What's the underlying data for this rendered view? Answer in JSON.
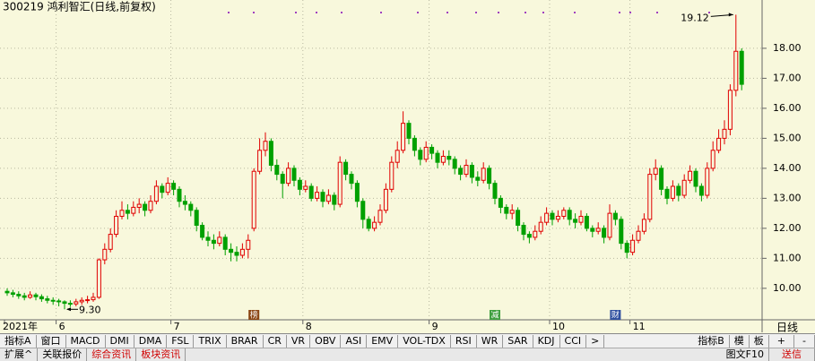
{
  "chart_data": {
    "type": "candlestick",
    "title": "300219 鸿利智汇(日线,前复权)",
    "categories": [
      "2021年",
      null,
      null,
      null,
      null,
      null,
      null,
      null,
      null,
      "6",
      null,
      null,
      null,
      null,
      null,
      null,
      null,
      null,
      null,
      null,
      null,
      null,
      null,
      null,
      null,
      null,
      null,
      null,
      null,
      "7",
      null,
      null,
      null,
      null,
      null,
      null,
      null,
      null,
      null,
      null,
      null,
      null,
      null,
      null,
      null,
      null,
      null,
      null,
      null,
      null,
      null,
      null,
      "8",
      null,
      null,
      null,
      null,
      null,
      null,
      null,
      null,
      null,
      null,
      null,
      null,
      null,
      null,
      null,
      null,
      null,
      null,
      null,
      null,
      null,
      "9",
      null,
      null,
      null,
      null,
      null,
      null,
      null,
      null,
      null,
      null,
      null,
      null,
      null,
      null,
      null,
      null,
      null,
      null,
      null,
      null,
      "10",
      null,
      null,
      null,
      null,
      null,
      null,
      null,
      null,
      null,
      null,
      null,
      null,
      null,
      "11",
      null,
      null,
      null,
      null,
      null,
      null,
      null,
      null,
      null,
      null,
      null,
      null,
      null,
      null,
      null,
      null,
      null,
      null,
      null
    ],
    "open": [
      9.9,
      9.85,
      9.8,
      9.75,
      9.7,
      9.78,
      9.72,
      9.65,
      9.6,
      9.58,
      9.55,
      9.5,
      9.48,
      9.55,
      9.6,
      9.62,
      9.7,
      10.95,
      11.3,
      11.8,
      12.4,
      12.6,
      12.5,
      12.7,
      12.8,
      12.6,
      12.9,
      13.4,
      13.2,
      13.5,
      13.3,
      12.9,
      12.8,
      12.6,
      12.1,
      11.7,
      11.6,
      11.5,
      11.7,
      11.3,
      11.2,
      11.1,
      11.3,
      12.0,
      13.9,
      14.6,
      14.9,
      14.1,
      13.8,
      13.5,
      14.0,
      13.6,
      13.3,
      13.4,
      13.0,
      13.2,
      12.9,
      13.1,
      12.8,
      14.2,
      13.8,
      13.5,
      12.9,
      12.3,
      12.0,
      12.2,
      12.6,
      13.3,
      14.2,
      14.6,
      15.5,
      15.0,
      14.6,
      14.3,
      14.7,
      14.5,
      14.2,
      14.4,
      14.3,
      14.0,
      13.8,
      14.1,
      13.7,
      13.6,
      14.0,
      13.5,
      13.0,
      12.7,
      12.5,
      12.6,
      12.1,
      11.8,
      11.7,
      11.9,
      12.2,
      12.5,
      12.3,
      12.4,
      12.6,
      12.3,
      12.2,
      12.4,
      12.0,
      11.9,
      12.0,
      11.7,
      12.5,
      12.3,
      11.5,
      11.2,
      11.6,
      11.9,
      12.3,
      13.8,
      14.0,
      13.3,
      13.0,
      13.4,
      13.1,
      13.6,
      13.9,
      13.4,
      13.1,
      14.0,
      14.6,
      15.0,
      15.3,
      16.6,
      17.9
    ],
    "close": [
      9.85,
      9.8,
      9.75,
      9.7,
      9.78,
      9.72,
      9.65,
      9.6,
      9.58,
      9.55,
      9.5,
      9.48,
      9.55,
      9.6,
      9.62,
      9.7,
      10.95,
      11.3,
      11.8,
      12.4,
      12.6,
      12.5,
      12.7,
      12.8,
      12.6,
      12.9,
      13.4,
      13.2,
      13.5,
      13.3,
      12.9,
      12.8,
      12.6,
      12.1,
      11.7,
      11.6,
      11.5,
      11.7,
      11.3,
      11.2,
      11.1,
      11.3,
      11.6,
      13.9,
      14.6,
      14.9,
      14.1,
      13.8,
      13.5,
      14.0,
      13.6,
      13.3,
      13.4,
      13.0,
      13.2,
      12.9,
      13.1,
      12.8,
      14.2,
      13.8,
      13.5,
      12.9,
      12.3,
      12.0,
      12.2,
      12.6,
      13.3,
      14.2,
      14.6,
      15.5,
      15.0,
      14.6,
      14.3,
      14.7,
      14.5,
      14.2,
      14.4,
      14.3,
      14.0,
      13.8,
      14.1,
      13.7,
      13.6,
      14.0,
      13.5,
      13.0,
      12.7,
      12.5,
      12.6,
      12.1,
      11.8,
      11.7,
      11.9,
      12.2,
      12.5,
      12.3,
      12.4,
      12.6,
      12.3,
      12.2,
      12.4,
      12.0,
      11.9,
      12.0,
      11.7,
      12.5,
      12.3,
      11.5,
      11.2,
      11.6,
      11.9,
      12.3,
      13.8,
      14.0,
      13.3,
      13.0,
      13.4,
      13.1,
      13.6,
      13.9,
      13.4,
      13.1,
      14.0,
      14.6,
      15.0,
      15.3,
      16.6,
      17.9,
      16.8
    ],
    "high": [
      10.0,
      9.95,
      9.9,
      9.85,
      9.9,
      9.85,
      9.8,
      9.75,
      9.7,
      9.65,
      9.6,
      9.6,
      9.65,
      9.7,
      9.75,
      9.85,
      11.0,
      11.5,
      12.0,
      12.6,
      12.9,
      12.8,
      12.9,
      13.0,
      12.9,
      13.1,
      13.6,
      13.5,
      13.7,
      13.6,
      13.4,
      13.1,
      12.9,
      12.7,
      12.2,
      11.9,
      11.8,
      11.9,
      11.8,
      11.5,
      11.4,
      11.5,
      11.8,
      14.0,
      15.0,
      15.2,
      15.0,
      14.3,
      13.9,
      14.2,
      14.1,
      13.7,
      13.6,
      13.5,
      13.4,
      13.3,
      13.3,
      13.2,
      14.4,
      14.3,
      13.9,
      13.6,
      13.0,
      12.4,
      12.4,
      12.8,
      13.5,
      14.4,
      14.9,
      15.9,
      15.6,
      15.1,
      14.7,
      14.9,
      14.8,
      14.6,
      14.6,
      14.6,
      14.4,
      14.1,
      14.3,
      14.2,
      13.9,
      14.2,
      14.1,
      13.6,
      13.1,
      12.8,
      12.8,
      12.7,
      12.2,
      11.9,
      12.1,
      12.4,
      12.7,
      12.6,
      12.6,
      12.7,
      12.7,
      12.5,
      12.6,
      12.5,
      12.1,
      12.2,
      12.1,
      12.8,
      12.6,
      12.4,
      11.6,
      11.8,
      12.1,
      12.5,
      14.0,
      14.3,
      14.1,
      13.4,
      13.6,
      13.5,
      13.8,
      14.1,
      14.0,
      13.5,
      14.2,
      14.9,
      15.3,
      15.6,
      16.8,
      19.12,
      18.0
    ],
    "low": [
      9.75,
      9.7,
      9.65,
      9.6,
      9.65,
      9.6,
      9.55,
      9.5,
      9.45,
      9.4,
      9.3,
      9.38,
      9.4,
      9.45,
      9.5,
      9.55,
      9.65,
      10.8,
      11.2,
      11.7,
      12.3,
      12.3,
      12.4,
      12.5,
      12.4,
      12.5,
      12.8,
      13.0,
      13.1,
      13.1,
      12.7,
      12.6,
      12.4,
      11.9,
      11.6,
      11.4,
      11.3,
      11.4,
      11.1,
      10.9,
      10.9,
      11.0,
      11.0,
      11.9,
      13.8,
      14.4,
      13.9,
      13.6,
      13.0,
      13.4,
      13.4,
      13.1,
      13.2,
      12.9,
      12.9,
      12.7,
      12.8,
      12.6,
      12.7,
      13.6,
      13.3,
      12.7,
      12.0,
      11.9,
      11.9,
      12.1,
      12.5,
      13.2,
      14.0,
      14.5,
      14.8,
      14.4,
      14.1,
      14.2,
      14.3,
      14.0,
      14.1,
      14.1,
      13.8,
      13.6,
      13.7,
      13.5,
      13.4,
      13.5,
      13.3,
      12.8,
      12.5,
      12.3,
      12.3,
      11.9,
      11.6,
      11.5,
      11.6,
      11.8,
      12.1,
      12.1,
      12.2,
      12.3,
      12.1,
      12.0,
      12.1,
      11.9,
      11.7,
      11.8,
      11.5,
      11.6,
      12.1,
      11.3,
      11.0,
      11.1,
      11.5,
      11.8,
      12.2,
      13.6,
      13.1,
      12.8,
      12.9,
      12.9,
      13.0,
      13.5,
      13.2,
      12.9,
      13.0,
      13.9,
      14.5,
      14.8,
      15.1,
      16.4,
      16.6
    ],
    "up_color": "#e00000",
    "down_color": "#00a000",
    "ylim": [
      9.1,
      19.55
    ],
    "yticks": [
      {
        "value": 10,
        "label": "10.00"
      },
      {
        "value": 11,
        "label": "11.00"
      },
      {
        "value": 12,
        "label": "12.00"
      },
      {
        "value": 13,
        "label": "13.00"
      },
      {
        "value": 14,
        "label": "14.00"
      },
      {
        "value": 15,
        "label": "15.00"
      },
      {
        "value": 16,
        "label": "16.00"
      },
      {
        "value": 17,
        "label": "17.00"
      },
      {
        "value": 18,
        "label": "18.00"
      }
    ],
    "grid": true,
    "annotations": [
      "19.12",
      "9.30"
    ],
    "event_markers": [
      "榜",
      "减",
      "财"
    ]
  },
  "ui": {
    "period": "日线",
    "indicator_tabs": [
      "指标A",
      "窗口",
      "MACD",
      "DMI",
      "DMA",
      "FSL",
      "TRIX",
      "BRAR",
      "CR",
      "VR",
      "OBV",
      "ASI",
      "EMV",
      "VOL-TDX",
      "RSI",
      "WR",
      "SAR",
      "KDJ",
      "CCI",
      ">"
    ],
    "right_tabs": [
      "指标B",
      "模",
      "板",
      "+",
      "-"
    ],
    "bottom_tabs": [
      "扩展^",
      "关联报价",
      "综合资讯",
      "板块资讯"
    ],
    "bottom_right": [
      "图文F10",
      "送信"
    ]
  }
}
